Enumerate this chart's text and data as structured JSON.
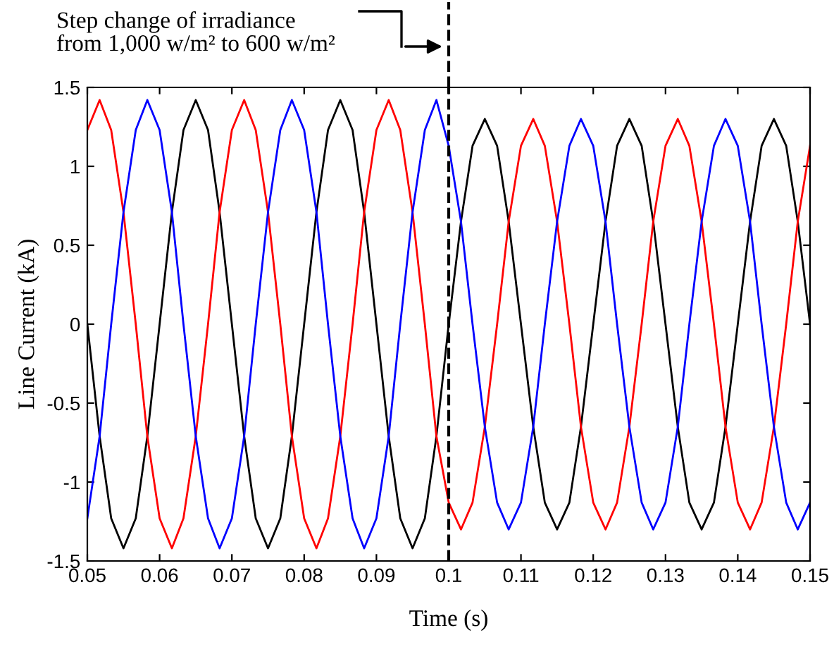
{
  "chart_data": {
    "type": "line",
    "xlabel": "Time (s)",
    "ylabel": "Line Current (kA)",
    "xlim": [
      0.05,
      0.15
    ],
    "xticks": [
      0.05,
      0.06,
      0.07,
      0.08,
      0.09,
      0.1,
      0.11,
      0.12,
      0.13,
      0.14,
      0.15
    ],
    "ylim": [
      -1.5,
      1.5
    ],
    "yticks": [
      -1.5,
      -1,
      -0.5,
      0,
      0.5,
      1,
      1.5
    ],
    "grid": false,
    "legend": false,
    "marker": "none",
    "line_style": "solid",
    "x": [
      0.05,
      0.0517,
      0.0533,
      0.055,
      0.0567,
      0.0583,
      0.06,
      0.0617,
      0.0633,
      0.065,
      0.0667,
      0.0683,
      0.07,
      0.0717,
      0.0733,
      0.075,
      0.0767,
      0.0783,
      0.08,
      0.0817,
      0.0833,
      0.085,
      0.0867,
      0.0883,
      0.09,
      0.0917,
      0.0933,
      0.095,
      0.0967,
      0.0983,
      0.1,
      0.1017,
      0.1033,
      0.105,
      0.1067,
      0.1083,
      0.11,
      0.1117,
      0.1133,
      0.115,
      0.1167,
      0.1183,
      0.12,
      0.1217,
      0.1233,
      0.125,
      0.1267,
      0.1283,
      0.13,
      0.1317,
      0.1333,
      0.135,
      0.1367,
      0.1383,
      0.14,
      0.1417,
      0.1433,
      0.145,
      0.1467,
      0.1483,
      0.15
    ],
    "series": [
      {
        "color": "#000000",
        "values": [
          0,
          -0.71,
          -1.23,
          -1.42,
          -1.23,
          -0.71,
          0,
          0.71,
          1.23,
          1.42,
          1.23,
          0.71,
          0,
          -0.71,
          -1.23,
          -1.42,
          -1.23,
          -0.71,
          0,
          0.71,
          1.23,
          1.42,
          1.23,
          0.71,
          0,
          -0.71,
          -1.23,
          -1.42,
          -1.23,
          -0.71,
          0,
          0.65,
          1.13,
          1.3,
          1.13,
          0.65,
          0,
          -0.65,
          -1.13,
          -1.3,
          -1.13,
          -0.65,
          0,
          0.65,
          1.13,
          1.3,
          1.13,
          0.65,
          0,
          -0.65,
          -1.13,
          -1.3,
          -1.13,
          -0.65,
          0,
          0.65,
          1.13,
          1.3,
          1.13,
          0.65,
          0
        ]
      },
      {
        "color": "#ff0000",
        "values": [
          1.23,
          1.42,
          1.23,
          0.71,
          0,
          -0.71,
          -1.23,
          -1.42,
          -1.23,
          -0.71,
          0,
          0.71,
          1.23,
          1.42,
          1.23,
          0.71,
          0,
          -0.71,
          -1.23,
          -1.42,
          -1.23,
          -0.71,
          0,
          0.71,
          1.23,
          1.42,
          1.23,
          0.71,
          0,
          -0.71,
          -1.13,
          -1.3,
          -1.13,
          -0.65,
          0,
          0.65,
          1.13,
          1.3,
          1.13,
          0.65,
          0,
          -0.65,
          -1.13,
          -1.3,
          -1.13,
          -0.65,
          0,
          0.65,
          1.13,
          1.3,
          1.13,
          0.65,
          0,
          -0.65,
          -1.13,
          -1.3,
          -1.13,
          -0.65,
          0,
          0.65,
          1.13
        ]
      },
      {
        "color": "#0000ff",
        "values": [
          -1.23,
          -0.71,
          0,
          0.71,
          1.23,
          1.42,
          1.23,
          0.71,
          0,
          -0.71,
          -1.23,
          -1.42,
          -1.23,
          -0.71,
          0,
          0.71,
          1.23,
          1.42,
          1.23,
          0.71,
          0,
          -0.71,
          -1.23,
          -1.42,
          -1.23,
          -0.71,
          0,
          0.71,
          1.23,
          1.42,
          1.13,
          0.65,
          0,
          -0.65,
          -1.13,
          -1.3,
          -1.13,
          -0.65,
          0,
          0.65,
          1.13,
          1.3,
          1.13,
          0.65,
          0,
          -0.65,
          -1.13,
          -1.3,
          -1.13,
          -0.65,
          0,
          0.65,
          1.13,
          1.3,
          1.13,
          0.65,
          0,
          -0.65,
          -1.13,
          -1.3,
          -1.13
        ]
      }
    ],
    "ref_lines": [
      {
        "axis": "x",
        "value": 0.1,
        "color": "#000000",
        "line_style": "dashed"
      }
    ],
    "annotations": [
      "Step change of irradiance\nfrom 1,000 w/m² to 600 w/m²"
    ]
  }
}
